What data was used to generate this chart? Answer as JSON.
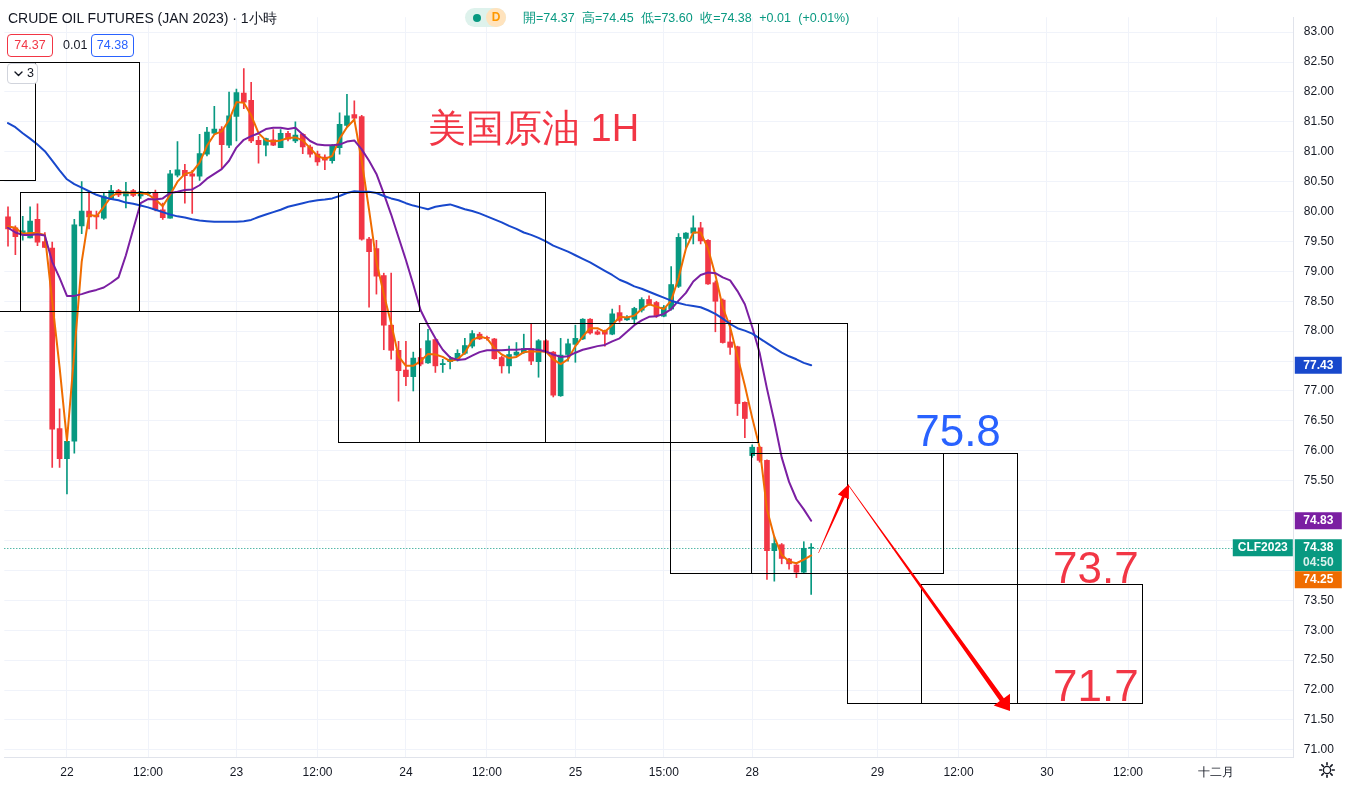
{
  "chart_data": {
    "type": "candlestick",
    "title": "CRUDE OIL FUTURES (JAN 2023) · 1小時",
    "subtitle": "開=74.37 高=74.45 低=73.60 收=74.38 +0.01 (+0.01%)",
    "categories": [
      null,
      null,
      null,
      null,
      null,
      null,
      null,
      null,
      "22",
      null,
      null,
      null,
      null,
      null,
      null,
      null,
      null,
      null,
      null,
      "12:00",
      null,
      null,
      null,
      null,
      null,
      null,
      null,
      null,
      null,
      null,
      null,
      "23",
      null,
      null,
      null,
      null,
      null,
      null,
      null,
      null,
      null,
      null,
      "12:00",
      null,
      null,
      null,
      null,
      null,
      null,
      null,
      null,
      null,
      null,
      null,
      "24",
      null,
      null,
      null,
      null,
      null,
      null,
      null,
      null,
      null,
      null,
      "12:00",
      null,
      null,
      null,
      null,
      null,
      null,
      null,
      null,
      null,
      null,
      null,
      "25",
      null,
      null,
      null,
      null,
      null,
      null,
      null,
      null,
      null,
      null,
      null,
      "15:00",
      null,
      null,
      null,
      null,
      null,
      null,
      null,
      null,
      null,
      null,
      null,
      "28",
      null,
      null,
      null,
      null,
      null,
      null,
      null,
      null,
      null,
      null,
      null,
      null,
      null,
      null,
      null,
      null,
      "29",
      null,
      null,
      null,
      null,
      null,
      null,
      null,
      null,
      null,
      null,
      "12:00",
      null,
      null,
      null,
      null,
      null,
      null,
      null,
      null,
      null,
      null,
      null,
      "30",
      null,
      null,
      null,
      null,
      null,
      null,
      null,
      null,
      null,
      null,
      "12:00",
      null,
      null,
      null,
      null,
      null,
      null,
      null,
      null,
      null,
      null,
      null,
      "十二月",
      null,
      null,
      null,
      null,
      null,
      null,
      null,
      null,
      null,
      null
    ],
    "ohlc": [
      [
        79.91,
        80.08,
        79.42,
        79.71
      ],
      [
        79.73,
        79.76,
        79.28,
        79.58
      ],
      [
        79.61,
        79.92,
        79.52,
        79.68
      ],
      [
        79.56,
        80.08,
        79.56,
        79.84
      ],
      [
        79.87,
        80.13,
        79.43,
        79.49
      ],
      [
        79.5,
        79.65,
        79.4,
        79.4
      ],
      [
        79.39,
        79.49,
        75.72,
        76.36
      ],
      [
        76.37,
        76.7,
        75.72,
        75.87
      ],
      [
        75.87,
        76.19,
        75.28,
        76.16
      ],
      [
        76.16,
        79.87,
        75.96,
        79.78
      ],
      [
        79.76,
        80.5,
        79.63,
        80.01
      ],
      [
        80.01,
        80.32,
        79.71,
        79.91
      ],
      [
        79.94,
        80.01,
        79.71,
        79.91
      ],
      [
        79.89,
        80.31,
        79.87,
        80.26
      ],
      [
        80.22,
        80.44,
        80.2,
        80.35
      ],
      [
        80.35,
        80.37,
        80.25,
        80.28
      ],
      [
        80.26,
        80.49,
        80.06,
        80.33
      ],
      [
        80.35,
        80.37,
        80.25,
        80.27
      ],
      [
        80.26,
        80.34,
        80.22,
        80.33
      ],
      [
        80.3,
        80.33,
        80.27,
        80.3
      ],
      [
        80.32,
        80.36,
        80.01,
        80.03
      ],
      [
        80.03,
        80.14,
        79.87,
        79.9
      ],
      [
        79.89,
        80.69,
        79.89,
        80.63
      ],
      [
        80.61,
        81.17,
        80.58,
        80.7
      ],
      [
        80.69,
        80.79,
        80.14,
        80.6
      ],
      [
        80.63,
        80.69,
        79.97,
        80.59
      ],
      [
        80.59,
        81.29,
        80.52,
        80.97
      ],
      [
        80.96,
        81.41,
        80.93,
        81.33
      ],
      [
        81.31,
        81.76,
        81.29,
        81.38
      ],
      [
        81.38,
        81.42,
        80.73,
        81.12
      ],
      [
        81.11,
        82,
        81.07,
        81.6
      ],
      [
        81.59,
        82.05,
        81.18,
        81.99
      ],
      [
        81.98,
        82.39,
        81.72,
        81.83
      ],
      [
        81.86,
        82.16,
        81.15,
        81.18
      ],
      [
        81.19,
        81.26,
        80.81,
        81.12
      ],
      [
        81.11,
        81.23,
        80.93,
        81.22
      ],
      [
        81.2,
        81.37,
        81.1,
        81.11
      ],
      [
        81.07,
        81.37,
        81.07,
        81.31
      ],
      [
        81.31,
        81.34,
        81.18,
        81.21
      ],
      [
        81.18,
        81.5,
        81.15,
        81.28
      ],
      [
        81.29,
        81.31,
        80.97,
        81.08
      ],
      [
        81.08,
        81.11,
        80.91,
        80.96
      ],
      [
        80.96,
        81.01,
        80.77,
        80.83
      ],
      [
        80.91,
        80.95,
        80.7,
        80.86
      ],
      [
        80.85,
        81.12,
        80.81,
        81.1
      ],
      [
        81.07,
        81.65,
        80.96,
        81.46
      ],
      [
        81.44,
        81.96,
        81.42,
        81.6
      ],
      [
        81.62,
        81.85,
        81.54,
        81.56
      ],
      [
        81.59,
        81.61,
        79.52,
        79.54
      ],
      [
        79.54,
        79.57,
        78.4,
        79.33
      ],
      [
        79.38,
        79.52,
        78.62,
        78.92
      ],
      [
        78.93,
        78.97,
        77.69,
        78.1
      ],
      [
        78.1,
        78.97,
        77.53,
        77.68
      ],
      [
        77.68,
        77.83,
        76.83,
        77.34
      ],
      [
        77.35,
        77.83,
        77.09,
        77.24
      ],
      [
        77.24,
        77.65,
        77,
        77.55
      ],
      [
        77.56,
        77.71,
        77.42,
        77.45
      ],
      [
        77.47,
        78.03,
        77.46,
        77.84
      ],
      [
        77.86,
        77.87,
        77.31,
        77.42
      ],
      [
        77.44,
        77.53,
        77.31,
        77.46
      ],
      [
        77.49,
        77.58,
        77.37,
        77.53
      ],
      [
        77.52,
        77.69,
        77.5,
        77.63
      ],
      [
        77.63,
        77.88,
        77.61,
        77.76
      ],
      [
        77.75,
        78.01,
        77.72,
        77.96
      ],
      [
        77.95,
        77.98,
        77.86,
        77.87
      ],
      [
        77.89,
        77.92,
        77.85,
        77.88
      ],
      [
        77.87,
        77.88,
        77.53,
        77.54
      ],
      [
        77.56,
        77.58,
        77.3,
        77.42
      ],
      [
        77.42,
        77.75,
        77.3,
        77.61
      ],
      [
        77.6,
        77.81,
        77.58,
        77.65
      ],
      [
        77.64,
        77.95,
        77.63,
        77.71
      ],
      [
        77.71,
        78.13,
        77.44,
        77.5
      ],
      [
        77.49,
        77.86,
        77.23,
        77.84
      ],
      [
        77.84,
        77.86,
        77.64,
        77.65
      ],
      [
        77.65,
        77.66,
        76.9,
        76.93
      ],
      [
        76.92,
        77.88,
        76.91,
        77.6
      ],
      [
        77.61,
        77.87,
        77.5,
        77.79
      ],
      [
        77.78,
        78.1,
        77.48,
        77.88
      ],
      [
        77.87,
        78.21,
        77.86,
        78.2
      ],
      [
        78.2,
        78.21,
        77.95,
        77.97
      ],
      [
        77.99,
        78.02,
        77.94,
        77.95
      ],
      [
        78.01,
        78.02,
        77.75,
        77.95
      ],
      [
        77.95,
        78.37,
        77.94,
        78.29
      ],
      [
        78.31,
        78.43,
        78.15,
        78.18
      ],
      [
        78.19,
        78.26,
        78.18,
        78.23
      ],
      [
        78.2,
        78.4,
        78.13,
        78.38
      ],
      [
        78.35,
        78.56,
        78.32,
        78.53
      ],
      [
        78.53,
        78.59,
        78.43,
        78.45
      ],
      [
        78.48,
        78.5,
        78.23,
        78.26
      ],
      [
        78.25,
        78.43,
        78.24,
        78.4
      ],
      [
        78.37,
        79.08,
        78.35,
        78.78
      ],
      [
        78.75,
        79.63,
        78.73,
        79.57
      ],
      [
        79.55,
        79.65,
        79.38,
        79.64
      ],
      [
        79.64,
        79.93,
        79.46,
        79.73
      ],
      [
        79.73,
        79.82,
        79.46,
        79.51
      ],
      [
        79.52,
        79.53,
        78.78,
        78.79
      ],
      [
        78.81,
        78.84,
        77.99,
        78.5
      ],
      [
        78.52,
        78.54,
        77.8,
        77.81
      ],
      [
        77.82,
        78.18,
        77.61,
        77.73
      ],
      [
        77.74,
        77.75,
        76.59,
        76.79
      ],
      [
        76.81,
        76.82,
        76.22,
        76.54
      ],
      [
        75.92,
        76.1,
        75.89,
        76.06
      ],
      [
        76.06,
        76.07,
        75.81,
        75.84
      ],
      [
        75.84,
        75.85,
        73.85,
        74.33
      ],
      [
        74.33,
        74.56,
        73.82,
        74.45
      ],
      [
        74.43,
        74.45,
        74.11,
        74.2
      ],
      [
        74.19,
        74.2,
        74.02,
        74.11
      ],
      [
        74.09,
        74.1,
        73.88,
        73.97
      ],
      [
        73.97,
        74.48,
        73.96,
        74.37
      ],
      [
        74.37,
        74.45,
        73.6,
        74.38
      ],
      null,
      null,
      null,
      null,
      null,
      null,
      null,
      null,
      null,
      null,
      null,
      null,
      null,
      null,
      null,
      null,
      null,
      null,
      null,
      null,
      null,
      null,
      null,
      null,
      null,
      null,
      null,
      null,
      null,
      null,
      null,
      null,
      null,
      null,
      null,
      null,
      null,
      null,
      null,
      null,
      null,
      null,
      null,
      null,
      null,
      null,
      null,
      null,
      null,
      null,
      null,
      null,
      null,
      null,
      null,
      null,
      null,
      null,
      null,
      null,
      null,
      null,
      null,
      null,
      null
    ],
    "colors": [
      "#f23645",
      "#f23645",
      "#089981",
      "#089981",
      "#f23645",
      "#f23645",
      "#f23645",
      "#f23645",
      "#089981",
      "#089981",
      "#089981",
      "#f23645",
      "#f23645",
      "#089981",
      "#089981",
      "#f23645",
      "#089981",
      "#f23645",
      "#089981",
      "#089981",
      "#f23645",
      "#f23645",
      "#089981",
      "#089981",
      "#f23645",
      "#f23645",
      "#089981",
      "#089981",
      "#089981",
      "#f23645",
      "#089981",
      "#089981",
      "#f23645",
      "#f23645",
      "#f23645",
      "#089981",
      "#f23645",
      "#089981",
      "#f23645",
      "#089981",
      "#f23645",
      "#f23645",
      "#f23645",
      "#f23645",
      "#089981",
      "#089981",
      "#089981",
      "#f23645",
      "#f23645",
      "#f23645",
      "#f23645",
      "#f23645",
      "#f23645",
      "#f23645",
      "#f23645",
      "#089981",
      "#f23645",
      "#089981",
      "#f23645",
      "#089981",
      "#089981",
      "#089981",
      "#089981",
      "#089981",
      "#f23645",
      "#f23645",
      "#f23645",
      "#f23645",
      "#089981",
      "#089981",
      "#089981",
      "#f23645",
      "#089981",
      "#f23645",
      "#f23645",
      "#089981",
      "#089981",
      "#089981",
      "#089981",
      "#f23645",
      "#f23645",
      "#f23645",
      "#089981",
      "#f23645",
      "#089981",
      "#089981",
      "#089981",
      "#f23645",
      "#f23645",
      "#089981",
      "#089981",
      "#089981",
      "#089981",
      "#089981",
      "#f23645",
      "#f23645",
      "#f23645",
      "#f23645",
      "#f23645",
      "#f23645",
      "#f23645",
      "#089981",
      "#f23645",
      "#f23645",
      "#089981",
      "#f23645",
      "#f23645",
      "#f23645",
      "#089981",
      "#089981",
      null,
      null,
      null,
      null,
      null,
      null,
      null,
      null,
      null,
      null,
      null,
      null,
      null,
      null,
      null,
      null,
      null,
      null,
      null,
      null,
      null,
      null,
      null,
      null,
      null,
      null,
      null,
      null,
      null,
      null,
      null,
      null,
      null,
      null,
      null,
      null,
      null,
      null,
      null,
      null,
      null,
      null,
      null,
      null,
      null,
      null,
      null,
      null,
      null,
      null,
      null,
      null,
      null,
      null,
      null,
      null,
      null,
      null,
      null,
      null,
      null,
      null,
      null,
      null,
      null
    ],
    "series": [
      {
        "type": "line",
        "color": "#1848cc",
        "values": [
          81.48,
          81.41,
          81.31,
          81.22,
          81.12,
          81.01,
          80.85,
          80.69,
          80.54,
          80.46,
          80.4,
          80.34,
          80.28,
          80.24,
          80.21,
          80.19,
          80.15,
          80.13,
          80.1,
          80.07,
          80.03,
          79.99,
          79.95,
          79.92,
          79.9,
          79.87,
          79.85,
          79.84,
          79.83,
          79.83,
          79.83,
          79.83,
          79.84,
          79.86,
          79.91,
          79.95,
          79.99,
          80.03,
          80.08,
          80.11,
          80.14,
          80.17,
          80.19,
          80.2,
          80.22,
          80.26,
          80.31,
          80.34,
          80.33,
          80.33,
          80.31,
          80.26,
          80.22,
          80.19,
          80.14,
          80.1,
          80.07,
          80.04,
          80.08,
          80.1,
          80.12,
          80.08,
          80.04,
          80.01,
          79.97,
          79.92,
          79.87,
          79.82,
          79.76,
          79.71,
          79.65,
          79.61,
          79.56,
          79.5,
          79.43,
          79.38,
          79.33,
          79.27,
          79.21,
          79.15,
          79.08,
          79.01,
          78.94,
          78.86,
          78.81,
          78.75,
          78.71,
          78.66,
          78.61,
          78.56,
          78.51,
          78.47,
          78.44,
          78.42,
          78.4,
          78.35,
          78.29,
          78.21,
          78.12,
          78.05,
          78.01,
          77.96,
          77.88,
          77.8,
          77.72,
          77.64,
          77.58,
          77.53,
          77.47,
          77.43,
          null,
          null,
          null,
          null,
          null,
          null,
          null,
          null,
          null,
          null,
          null,
          null,
          null,
          null,
          null,
          null,
          null,
          null,
          null,
          null,
          null,
          null,
          null,
          null,
          null,
          null,
          null,
          null,
          null,
          null,
          null,
          null,
          null,
          null,
          null,
          null,
          null,
          null,
          null,
          null,
          null,
          null,
          null,
          null,
          null,
          null,
          null,
          null,
          null,
          null,
          null,
          null,
          null,
          null,
          null,
          null,
          null,
          null,
          null,
          null,
          null,
          null,
          null,
          null,
          null
        ]
      },
      {
        "type": "line",
        "color": "#7b1fa2",
        "values": [
          79.73,
          79.65,
          79.61,
          79.61,
          79.62,
          79.6,
          79.16,
          78.89,
          78.59,
          78.59,
          78.62,
          78.66,
          78.69,
          78.73,
          78.81,
          78.9,
          79.27,
          79.71,
          80.14,
          80.21,
          80.2,
          80.22,
          80.31,
          80.33,
          80.36,
          80.37,
          80.44,
          80.55,
          80.63,
          80.71,
          80.85,
          81.07,
          81.2,
          81.26,
          81.31,
          81.38,
          81.4,
          81.4,
          81.38,
          81.4,
          81.29,
          81.18,
          81.12,
          81.11,
          81.11,
          81.12,
          81.17,
          81.19,
          81.04,
          80.85,
          80.63,
          80.3,
          79.95,
          79.57,
          79.19,
          78.78,
          78.35,
          78.1,
          77.88,
          77.69,
          77.56,
          77.52,
          77.53,
          77.59,
          77.65,
          77.68,
          77.68,
          77.68,
          77.69,
          77.69,
          77.7,
          77.7,
          77.69,
          77.66,
          77.61,
          77.57,
          77.58,
          77.64,
          77.69,
          77.72,
          77.75,
          77.77,
          77.83,
          77.88,
          77.99,
          78.1,
          78.18,
          78.24,
          78.25,
          78.29,
          78.37,
          78.51,
          78.64,
          78.83,
          78.94,
          78.98,
          78.97,
          78.9,
          78.85,
          78.67,
          78.45,
          78.07,
          77.64,
          77.04,
          76.49,
          75.89,
          75.48,
          75.19,
          75.02,
          74.83,
          null,
          null,
          null,
          null,
          null,
          null,
          null,
          null,
          null,
          null,
          null,
          null,
          null,
          null,
          null,
          null,
          null,
          null,
          null,
          null,
          null,
          null,
          null,
          null,
          null,
          null,
          null,
          null,
          null,
          null,
          null,
          null,
          null,
          null,
          null,
          null,
          null,
          null,
          null,
          null,
          null,
          null,
          null,
          null,
          null,
          null,
          null,
          null,
          null,
          null,
          null,
          null,
          null,
          null,
          null,
          null,
          null,
          null,
          null,
          null,
          null,
          null,
          null,
          null,
          null
        ]
      },
      {
        "type": "line",
        "color": "#ef6c00",
        "values": [
          79.75,
          79.73,
          79.63,
          79.64,
          79.64,
          79.61,
          78.5,
          77.4,
          76.17,
          77.64,
          79.16,
          79.95,
          79.92,
          80.08,
          80.25,
          80.32,
          80.32,
          80.31,
          80.31,
          80.29,
          80.2,
          80.09,
          80.28,
          80.5,
          80.63,
          80.66,
          80.82,
          81.1,
          81.29,
          81.34,
          81.53,
          81.83,
          81.82,
          81.61,
          81.31,
          81.19,
          81.17,
          81.19,
          81.23,
          81.24,
          81.19,
          81.06,
          80.93,
          80.88,
          80.93,
          81.22,
          81.41,
          81.54,
          80.85,
          80.03,
          79.16,
          78.62,
          78.13,
          77.58,
          77.42,
          77.42,
          77.5,
          77.62,
          77.61,
          77.57,
          77.5,
          77.53,
          77.64,
          77.85,
          77.91,
          77.88,
          77.72,
          77.61,
          77.55,
          77.57,
          77.65,
          77.66,
          77.66,
          77.66,
          77.53,
          77.45,
          77.53,
          77.75,
          77.91,
          78.05,
          78.05,
          77.99,
          78.1,
          78.24,
          78.23,
          78.26,
          78.37,
          78.45,
          78.41,
          78.37,
          78.51,
          78.89,
          79.38,
          79.65,
          79.65,
          79.38,
          78.94,
          78.4,
          78.07,
          77.58,
          77.09,
          76.55,
          76.06,
          75.02,
          74.56,
          74.26,
          74.15,
          74.12,
          74.18,
          74.25,
          null,
          null,
          null,
          null,
          null,
          null,
          null,
          null,
          null,
          null,
          null,
          null,
          null,
          null,
          null,
          null,
          null,
          null,
          null,
          null,
          null,
          null,
          null,
          null,
          null,
          null,
          null,
          null,
          null,
          null,
          null,
          null,
          null,
          null,
          null,
          null,
          null,
          null,
          null,
          null,
          null,
          null,
          null,
          null,
          null,
          null,
          null,
          null,
          null,
          null,
          null,
          null,
          null,
          null,
          null,
          null,
          null,
          null,
          null,
          null,
          null,
          null,
          null,
          null,
          null
        ]
      }
    ],
    "ylim": [
      70.88,
      83.25
    ],
    "yticks": [
      {
        "value": 71,
        "label": "71.00"
      },
      {
        "value": 71.5,
        "label": "71.50"
      },
      {
        "value": 72,
        "label": "72.00"
      },
      {
        "value": 72.5,
        "label": "72.50"
      },
      {
        "value": 73,
        "label": "73.00"
      },
      {
        "value": 73.5,
        "label": "73.50"
      },
      {
        "value": 74,
        "label": null
      },
      {
        "value": 74.5,
        "label": null
      },
      {
        "value": 75,
        "label": null
      },
      {
        "value": 75.5,
        "label": "75.50"
      },
      {
        "value": 76,
        "label": "76.00"
      },
      {
        "value": 76.5,
        "label": "76.50"
      },
      {
        "value": 77,
        "label": "77.00"
      },
      {
        "value": 77.5,
        "label": null
      },
      {
        "value": 78,
        "label": "78.00"
      },
      {
        "value": 78.5,
        "label": "78.50"
      },
      {
        "value": 79,
        "label": "79.00"
      },
      {
        "value": 79.5,
        "label": "79.50"
      },
      {
        "value": 80,
        "label": "80.00"
      },
      {
        "value": 80.5,
        "label": "80.50"
      },
      {
        "value": 81,
        "label": "81.00"
      },
      {
        "value": 81.5,
        "label": "81.50"
      },
      {
        "value": 82,
        "label": "82.00"
      },
      {
        "value": 82.5,
        "label": "82.50"
      },
      {
        "value": 83,
        "label": "83.00"
      }
    ],
    "grid": true,
    "ref_lines": [
      {
        "axis": "y",
        "value": 74.38,
        "label": "74.38",
        "color": "#089981",
        "line_style": "dotted"
      }
    ],
    "annotations": [
      "74.37",
      "0.01",
      "74.38",
      "3",
      "D",
      "美国原油 1H",
      "75.8",
      "73.7",
      "71.7",
      "CLF2023",
      "04:50",
      "77.43",
      "74.83",
      "74.25"
    ]
  }
}
